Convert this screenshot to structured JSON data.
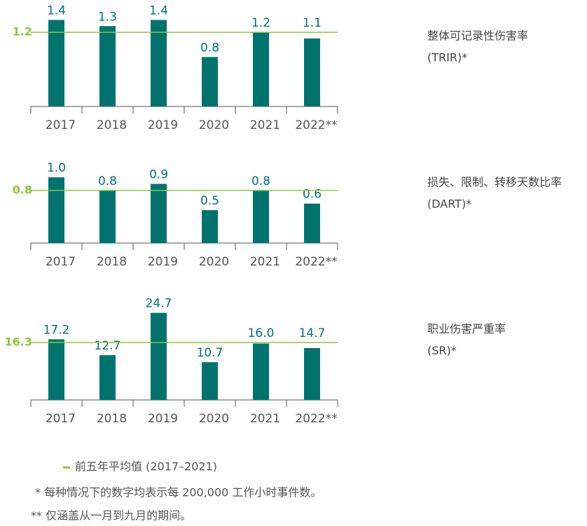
{
  "chart_data": [
    {
      "type": "bar",
      "title": "整体可记录性伤害率",
      "subtitle": "(TRIR)*",
      "categories": [
        "2017",
        "2018",
        "2019",
        "2020",
        "2021",
        "2022**"
      ],
      "values": [
        1.4,
        1.3,
        1.4,
        0.8,
        1.2,
        1.1
      ],
      "value_labels": [
        "1.4",
        "1.3",
        "1.4",
        "0.8",
        "1.2",
        "1.1"
      ],
      "average": 1.2,
      "color": "#00736e",
      "average_color": "#8dc63f",
      "ylim": [
        0,
        1.7
      ]
    },
    {
      "type": "bar",
      "title": "损失、限制、转移天数比率",
      "subtitle": "(DART)*",
      "categories": [
        "2017",
        "2018",
        "2019",
        "2020",
        "2021",
        "2022**"
      ],
      "values": [
        1.0,
        0.8,
        0.9,
        0.5,
        0.8,
        0.6
      ],
      "value_labels": [
        "1.0",
        "0.8",
        "0.9",
        "0.5",
        "0.8",
        "0.6"
      ],
      "average": 0.8,
      "color": "#00736e",
      "average_color": "#8dc63f",
      "ylim": [
        0,
        1.3
      ]
    },
    {
      "type": "bar",
      "title": "职业伤害严重率",
      "subtitle": "(SR)*",
      "categories": [
        "2017",
        "2018",
        "2019",
        "2020",
        "2021",
        "2022**"
      ],
      "values": [
        17.2,
        12.7,
        24.7,
        10.7,
        16.0,
        14.7
      ],
      "value_labels": [
        "17.2",
        "12.7",
        "24.7",
        "10.7",
        "16.0",
        "14.7"
      ],
      "average": 16.3,
      "color": "#00736e",
      "average_color": "#8dc63f",
      "ylim": [
        0,
        30
      ]
    }
  ],
  "footnotes": {
    "legend": "前五年平均值 (2017–2021)",
    "notes": [
      "* 每种情况下的数字均表示每 200,000 工作小时事件数。",
      "** 仅涵盖从一月到九月的期间。"
    ]
  }
}
